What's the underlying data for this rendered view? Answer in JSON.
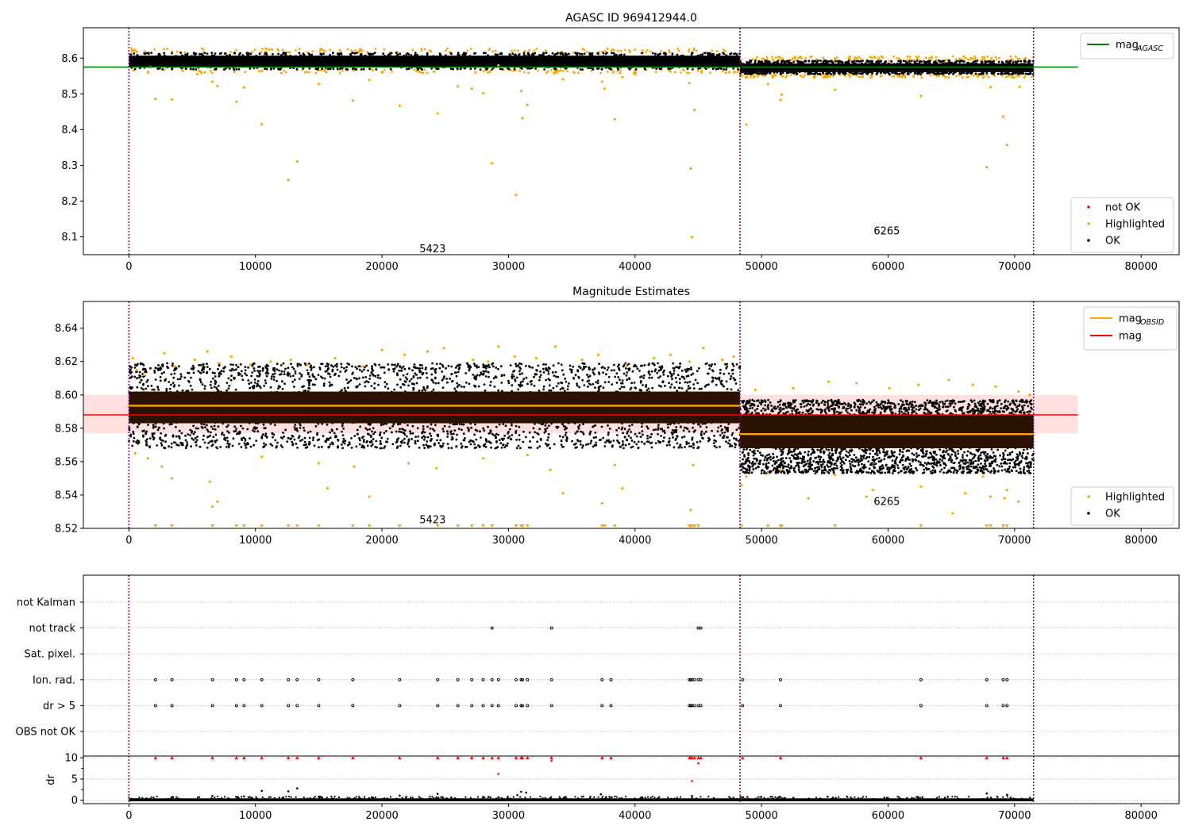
{
  "colors": {
    "ok": "#000000",
    "highlighted": "#ffa500",
    "not_ok": "#ff0000",
    "agasc_line": "#008000",
    "obsid_line": "#ffa500",
    "mag_line": "#ff0000",
    "mag_band": "#ffcccc",
    "obs_band": "#2b1100",
    "vline": "#800080",
    "grid": "#b0b0b0"
  },
  "chart_data": [
    {
      "type": "scatter",
      "title": "AGASC ID 969412944.0",
      "xlim": [
        -3600,
        83000
      ],
      "ylim": [
        8.05,
        8.685
      ],
      "xticks": [
        0,
        10000,
        20000,
        30000,
        40000,
        50000,
        60000,
        70000,
        80000
      ],
      "yticks": [
        8.1,
        8.2,
        8.3,
        8.4,
        8.5,
        8.6
      ],
      "ytick_labels": [
        "8.1",
        "8.2",
        "8.3",
        "8.4",
        "8.5",
        "8.6"
      ],
      "obs_boundaries": [
        0,
        48300,
        71500
      ],
      "obs_labels": [
        {
          "text": "5423",
          "x": 24000,
          "y": 8.065
        },
        {
          "text": "6265",
          "x": 59900,
          "y": 8.115
        }
      ],
      "legend_upper": {
        "position": "upper right",
        "entries": [
          {
            "label": "mag",
            "sub": "AGASC",
            "kind": "line",
            "color": "agasc_line"
          }
        ]
      },
      "legend_lower": {
        "position": "lower right",
        "entries": [
          {
            "label": "not OK",
            "color": "not_ok"
          },
          {
            "label": "Highlighted",
            "color": "highlighted"
          },
          {
            "label": "OK",
            "color": "ok"
          }
        ]
      },
      "agasc_mag": 8.575,
      "agasc_line_xrange": [
        -3600,
        75000
      ],
      "obs_segments": [
        {
          "x0": 0,
          "x1": 48300,
          "center": 8.594,
          "lo": 8.579,
          "hi": 8.607
        },
        {
          "x0": 48300,
          "x1": 71500,
          "center": 8.577,
          "lo": 8.565,
          "hi": 8.586
        }
      ],
      "highlighted_points": [
        [
          1700,
          8.575
        ],
        [
          2100,
          8.486
        ],
        [
          3400,
          8.484
        ],
        [
          5400,
          8.555
        ],
        [
          6600,
          8.534
        ],
        [
          7000,
          8.522
        ],
        [
          8500,
          8.478
        ],
        [
          9100,
          8.518
        ],
        [
          10500,
          8.415
        ],
        [
          12600,
          8.259
        ],
        [
          13300,
          8.311
        ],
        [
          15000,
          8.528
        ],
        [
          17700,
          8.481
        ],
        [
          19000,
          8.539
        ],
        [
          21400,
          8.467
        ],
        [
          24400,
          8.445
        ],
        [
          26000,
          8.521
        ],
        [
          27100,
          8.515
        ],
        [
          28000,
          8.502
        ],
        [
          28700,
          8.306
        ],
        [
          29200,
          8.58
        ],
        [
          30600,
          8.217
        ],
        [
          31000,
          8.508
        ],
        [
          31100,
          8.432
        ],
        [
          31500,
          8.469
        ],
        [
          33600,
          8.558
        ],
        [
          34300,
          8.541
        ],
        [
          37400,
          8.534
        ],
        [
          37600,
          8.515
        ],
        [
          38400,
          8.429
        ],
        [
          39000,
          8.547
        ],
        [
          44300,
          8.53
        ],
        [
          44400,
          8.291
        ],
        [
          44500,
          8.099
        ],
        [
          44700,
          8.455
        ],
        [
          48400,
          8.551
        ],
        [
          48800,
          8.414
        ],
        [
          50500,
          8.527
        ],
        [
          51500,
          8.483
        ],
        [
          51600,
          8.498
        ],
        [
          55800,
          8.512
        ],
        [
          62600,
          8.494
        ],
        [
          67800,
          8.295
        ],
        [
          68100,
          8.519
        ],
        [
          69100,
          8.436
        ],
        [
          69400,
          8.357
        ],
        [
          69800,
          8.548
        ],
        [
          70400,
          8.52
        ],
        [
          40000,
          8.555
        ],
        [
          20000,
          8.56
        ]
      ],
      "ok_bands": [
        {
          "x0": 0,
          "x1": 48300,
          "lo": 8.568,
          "hi": 8.615
        },
        {
          "x0": 48300,
          "x1": 71500,
          "lo": 8.555,
          "hi": 8.593
        }
      ]
    },
    {
      "type": "scatter",
      "title": "Magnitude Estimates",
      "xlim": [
        -3600,
        83000
      ],
      "ylim": [
        8.52,
        8.656
      ],
      "xticks": [
        0,
        10000,
        20000,
        30000,
        40000,
        50000,
        60000,
        70000,
        80000
      ],
      "yticks": [
        8.52,
        8.54,
        8.56,
        8.58,
        8.6,
        8.62,
        8.64
      ],
      "ytick_labels": [
        "8.52",
        "8.54",
        "8.56",
        "8.58",
        "8.60",
        "8.62",
        "8.64"
      ],
      "obs_boundaries": [
        0,
        48300,
        71500
      ],
      "obs_labels": [
        {
          "text": "5423",
          "x": 24000,
          "y": 8.525
        },
        {
          "text": "6265",
          "x": 59900,
          "y": 8.536
        }
      ],
      "legend_upper": {
        "position": "upper right",
        "entries": [
          {
            "label": "mag",
            "sub": "OBSID",
            "kind": "line",
            "color": "obsid_line"
          },
          {
            "label": "mag",
            "sub": "",
            "kind": "line",
            "color": "mag_line"
          }
        ]
      },
      "legend_lower": {
        "position": "lower right",
        "entries": [
          {
            "label": "Highlighted",
            "color": "highlighted"
          },
          {
            "label": "OK",
            "color": "ok"
          }
        ]
      },
      "mag": 8.588,
      "mag_band": [
        8.577,
        8.6
      ],
      "mag_line_xrange": [
        -3600,
        75000
      ],
      "obs_segments": [
        {
          "x0": 0,
          "x1": 48300,
          "center": 8.5935,
          "lo": 8.583,
          "hi": 8.602
        },
        {
          "x0": 48300,
          "x1": 71500,
          "center": 8.5765,
          "lo": 8.568,
          "hi": 8.588
        }
      ],
      "ok_bands": [
        {
          "x0": 0,
          "x1": 48300,
          "lo": 8.568,
          "hi": 8.619
        },
        {
          "x0": 48300,
          "x1": 71500,
          "lo": 8.553,
          "hi": 8.597
        }
      ],
      "highlighted_points": [
        [
          300,
          8.622
        ],
        [
          600,
          8.615
        ],
        [
          1200,
          8.612
        ],
        [
          2800,
          8.625
        ],
        [
          3600,
          8.617
        ],
        [
          5200,
          8.621
        ],
        [
          6200,
          8.626
        ],
        [
          7100,
          8.619
        ],
        [
          8100,
          8.623
        ],
        [
          9600,
          8.618
        ],
        [
          11200,
          8.62
        ],
        [
          12800,
          8.621
        ],
        [
          14100,
          8.618
        ],
        [
          16300,
          8.622
        ],
        [
          18500,
          8.617
        ],
        [
          20000,
          8.627
        ],
        [
          21800,
          8.624
        ],
        [
          23600,
          8.626
        ],
        [
          24900,
          8.628
        ],
        [
          27200,
          8.621
        ],
        [
          28400,
          8.62
        ],
        [
          29200,
          8.629
        ],
        [
          30500,
          8.623
        ],
        [
          32200,
          8.622
        ],
        [
          33700,
          8.629
        ],
        [
          35800,
          8.621
        ],
        [
          37100,
          8.624
        ],
        [
          39300,
          8.618
        ],
        [
          41500,
          8.622
        ],
        [
          42800,
          8.624
        ],
        [
          44300,
          8.62
        ],
        [
          45400,
          8.628
        ],
        [
          46900,
          8.621
        ],
        [
          47800,
          8.623
        ],
        [
          500,
          8.565
        ],
        [
          1500,
          8.562
        ],
        [
          2600,
          8.557
        ],
        [
          3400,
          8.55
        ],
        [
          6400,
          8.548
        ],
        [
          6600,
          8.533
        ],
        [
          7000,
          8.536
        ],
        [
          10500,
          8.563
        ],
        [
          15000,
          8.559
        ],
        [
          15700,
          8.544
        ],
        [
          17800,
          8.557
        ],
        [
          19000,
          8.539
        ],
        [
          22100,
          8.559
        ],
        [
          24300,
          8.556
        ],
        [
          28000,
          8.562
        ],
        [
          31500,
          8.564
        ],
        [
          33300,
          8.555
        ],
        [
          34300,
          8.541
        ],
        [
          37400,
          8.535
        ],
        [
          38400,
          8.558
        ],
        [
          39000,
          8.544
        ],
        [
          44400,
          8.531
        ],
        [
          44600,
          8.558
        ],
        [
          48400,
          8.546
        ],
        [
          48800,
          8.551
        ],
        [
          50500,
          8.553
        ],
        [
          51500,
          8.555
        ],
        [
          53700,
          8.538
        ],
        [
          55800,
          8.552
        ],
        [
          58300,
          8.539
        ],
        [
          58800,
          8.543
        ],
        [
          62600,
          8.545
        ],
        [
          65100,
          8.529
        ],
        [
          66100,
          8.541
        ],
        [
          67500,
          8.551
        ],
        [
          68100,
          8.539
        ],
        [
          69200,
          8.538
        ],
        [
          69400,
          8.543
        ],
        [
          70300,
          8.536
        ],
        [
          49500,
          8.603
        ],
        [
          52500,
          8.604
        ],
        [
          55300,
          8.608
        ],
        [
          57500,
          8.607
        ],
        [
          60100,
          8.604
        ],
        [
          62400,
          8.606
        ],
        [
          64800,
          8.609
        ],
        [
          66700,
          8.606
        ],
        [
          68500,
          8.605
        ],
        [
          70300,
          8.602
        ],
        [
          71200,
          8.6
        ]
      ],
      "below_axis_markers": [
        2100,
        3400,
        6600,
        8500,
        9100,
        10500,
        12600,
        13300,
        15000,
        17700,
        19000,
        21400,
        24400,
        26000,
        27100,
        28000,
        28700,
        30600,
        31000,
        31100,
        31500,
        37400,
        37600,
        38400,
        44300,
        44400,
        44500,
        44700,
        45000,
        48400,
        50500,
        51500,
        51600,
        55800,
        62600,
        67800,
        68100,
        69100,
        69400
      ]
    },
    {
      "type": "scatter",
      "title": "",
      "xlim": [
        -3600,
        83000
      ],
      "xticks": [
        0,
        10000,
        20000,
        30000,
        40000,
        50000,
        60000,
        70000,
        80000
      ],
      "categories": [
        "not Kalman",
        "not track",
        "Sat. pixel.",
        "Ion. rad.",
        "dr > 5",
        "OBS not OK"
      ],
      "obs_boundaries": [
        0,
        48300,
        71500
      ],
      "flags": {
        "not track": [
          28700,
          33400,
          45000,
          45200
        ],
        "Ion. rad.": [
          2100,
          3400,
          6600,
          8500,
          9100,
          10500,
          12600,
          13300,
          15000,
          17700,
          21400,
          24400,
          26000,
          27100,
          28000,
          28700,
          29200,
          30600,
          31000,
          31100,
          31500,
          33400,
          37400,
          38100,
          44300,
          44400,
          44500,
          44700,
          45000,
          45200,
          48500,
          51500,
          62600,
          67800,
          69100,
          69400
        ],
        "dr > 5": [
          2100,
          3400,
          6600,
          8500,
          9100,
          10500,
          12600,
          13300,
          15000,
          17700,
          21400,
          24400,
          26000,
          27100,
          28000,
          28700,
          29200,
          30600,
          31000,
          31100,
          31500,
          33400,
          37400,
          38100,
          44300,
          44400,
          44500,
          44700,
          45000,
          45200,
          48500,
          51500,
          62600,
          67800,
          69100,
          69400
        ]
      },
      "dr_panel": {
        "ylabel": "dr",
        "ylim": [
          -0.8,
          10.4
        ],
        "yticks": [
          0,
          5,
          10
        ],
        "clipped_points_at_10": [
          2100,
          3400,
          6600,
          8500,
          9100,
          10500,
          12600,
          13300,
          15000,
          17700,
          21400,
          24400,
          26000,
          27100,
          28000,
          28700,
          29200,
          30600,
          31000,
          31100,
          31500,
          33400,
          37400,
          38100,
          44300,
          44400,
          44500,
          44700,
          45000,
          45200,
          48500,
          51500,
          62600,
          67800,
          69100,
          69400
        ],
        "red_points": [
          [
            29200,
            6.2
          ],
          [
            44500,
            4.5
          ],
          [
            45000,
            8.7
          ],
          [
            33400,
            9.3
          ]
        ],
        "black_points": [
          [
            10500,
            2.2
          ],
          [
            12600,
            2.1
          ],
          [
            13300,
            2.8
          ],
          [
            24400,
            1.5
          ],
          [
            31000,
            2.0
          ],
          [
            31400,
            1.8
          ],
          [
            37300,
            1.4
          ],
          [
            67800,
            1.6
          ],
          [
            69400,
            1.3
          ],
          [
            44500,
            1.0
          ],
          [
            30700,
            1.2
          ],
          [
            21400,
            1.1
          ],
          [
            6600,
            1.0
          ],
          [
            9100,
            0.9
          ],
          [
            15000,
            0.8
          ]
        ]
      }
    }
  ]
}
